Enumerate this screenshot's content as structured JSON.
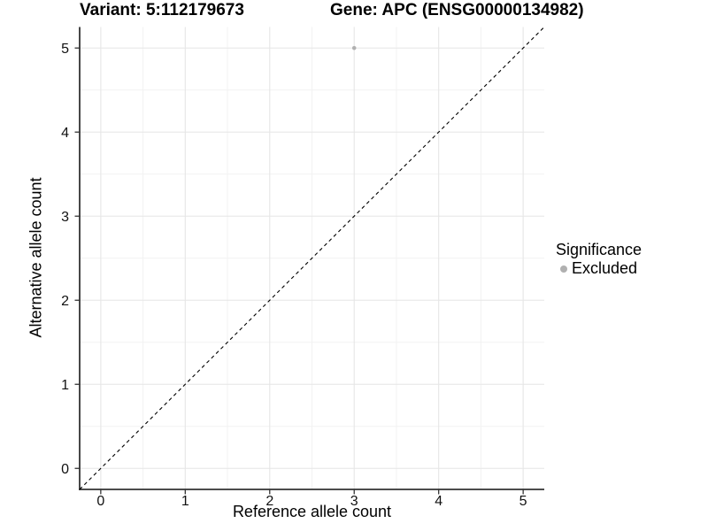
{
  "chart_data": {
    "type": "scatter",
    "title_left": "Variant: 5:112179673",
    "title_right": "Gene: APC (ENSG00000134982)",
    "xlabel": "Reference allele count",
    "ylabel": "Alternative allele count",
    "xlim": [
      -0.25,
      5.25
    ],
    "ylim": [
      -0.25,
      5.25
    ],
    "x_ticks": [
      0,
      1,
      2,
      3,
      4,
      5
    ],
    "y_ticks": [
      0,
      1,
      2,
      3,
      4,
      5
    ],
    "x_minor_ticks": [
      0.5,
      1.5,
      2.5,
      3.5,
      4.5
    ],
    "y_minor_ticks": [
      0.5,
      1.5,
      2.5,
      3.5,
      4.5
    ],
    "grid": "on",
    "legend_position": "right",
    "legend_title": "Significance",
    "series": [
      {
        "name": "Excluded",
        "color": "#b0b0b0",
        "points": [
          {
            "x": 3,
            "y": 5
          }
        ]
      }
    ],
    "reference_line": {
      "kind": "identity",
      "style": "dashed",
      "color": "#000000"
    },
    "colors": {
      "grid_major": "#e6e6e6",
      "grid_minor": "#f2f2f2",
      "axis": "#333333",
      "text": "#111111",
      "point": "#b0b0b0"
    }
  }
}
